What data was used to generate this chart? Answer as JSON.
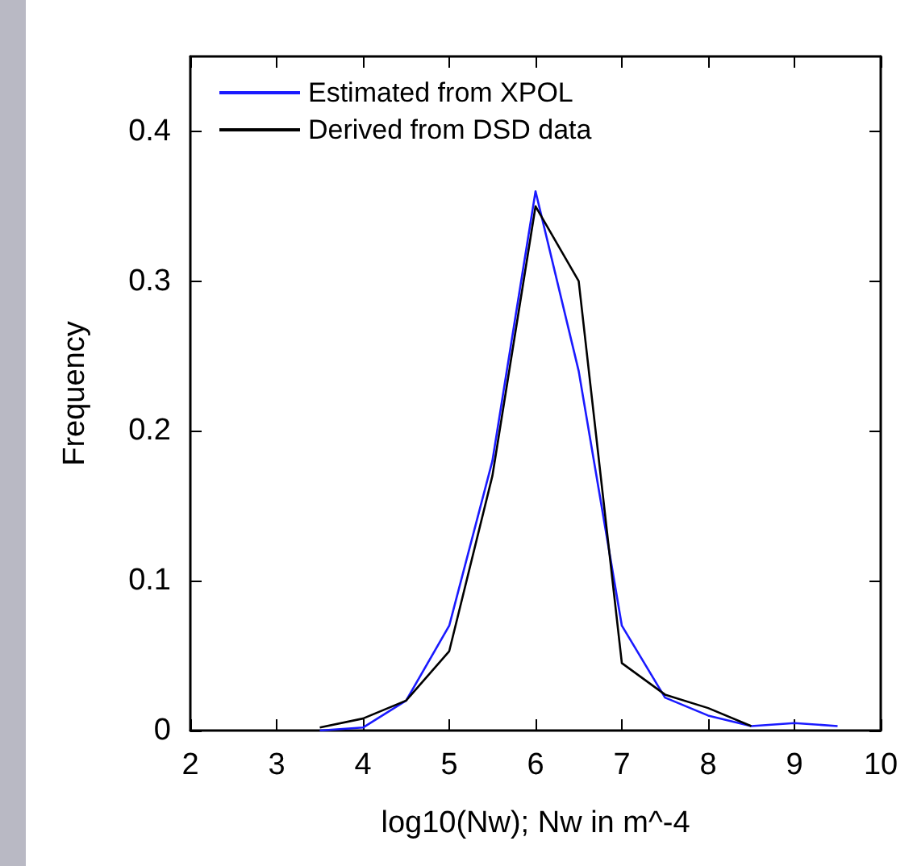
{
  "chart_data": {
    "type": "line",
    "xlabel": "log10(Nw); Nw in m^-4",
    "ylabel": "Frequency",
    "xlim": [
      2,
      10
    ],
    "xticks": [
      2,
      3,
      4,
      5,
      6,
      7,
      8,
      9,
      10
    ],
    "ylim": [
      0,
      0.45
    ],
    "yticks": [
      0,
      0.1,
      0.2,
      0.3,
      0.4
    ],
    "grid": false,
    "legend": "top left",
    "marker": "none",
    "series": [
      {
        "name": "Estimated from XPOL",
        "color": "#1a1aff",
        "x": [
          3.5,
          4,
          4.5,
          5,
          5.5,
          6,
          6.5,
          7,
          7.5,
          8,
          8.5,
          9,
          9.5
        ],
        "values": [
          0,
          0.002,
          0.02,
          0.07,
          0.18,
          0.36,
          0.24,
          0.07,
          0.022,
          0.01,
          0.003,
          0.005,
          0.003
        ]
      },
      {
        "name": "Derived from DSD data",
        "color": "#000000",
        "x": [
          3.5,
          4,
          4.5,
          5,
          5.5,
          6,
          6.5,
          7,
          7.5,
          8,
          8.5
        ],
        "values": [
          0.002,
          0.008,
          0.02,
          0.053,
          0.17,
          0.35,
          0.3,
          0.045,
          0.024,
          0.015,
          0.003
        ]
      }
    ]
  }
}
